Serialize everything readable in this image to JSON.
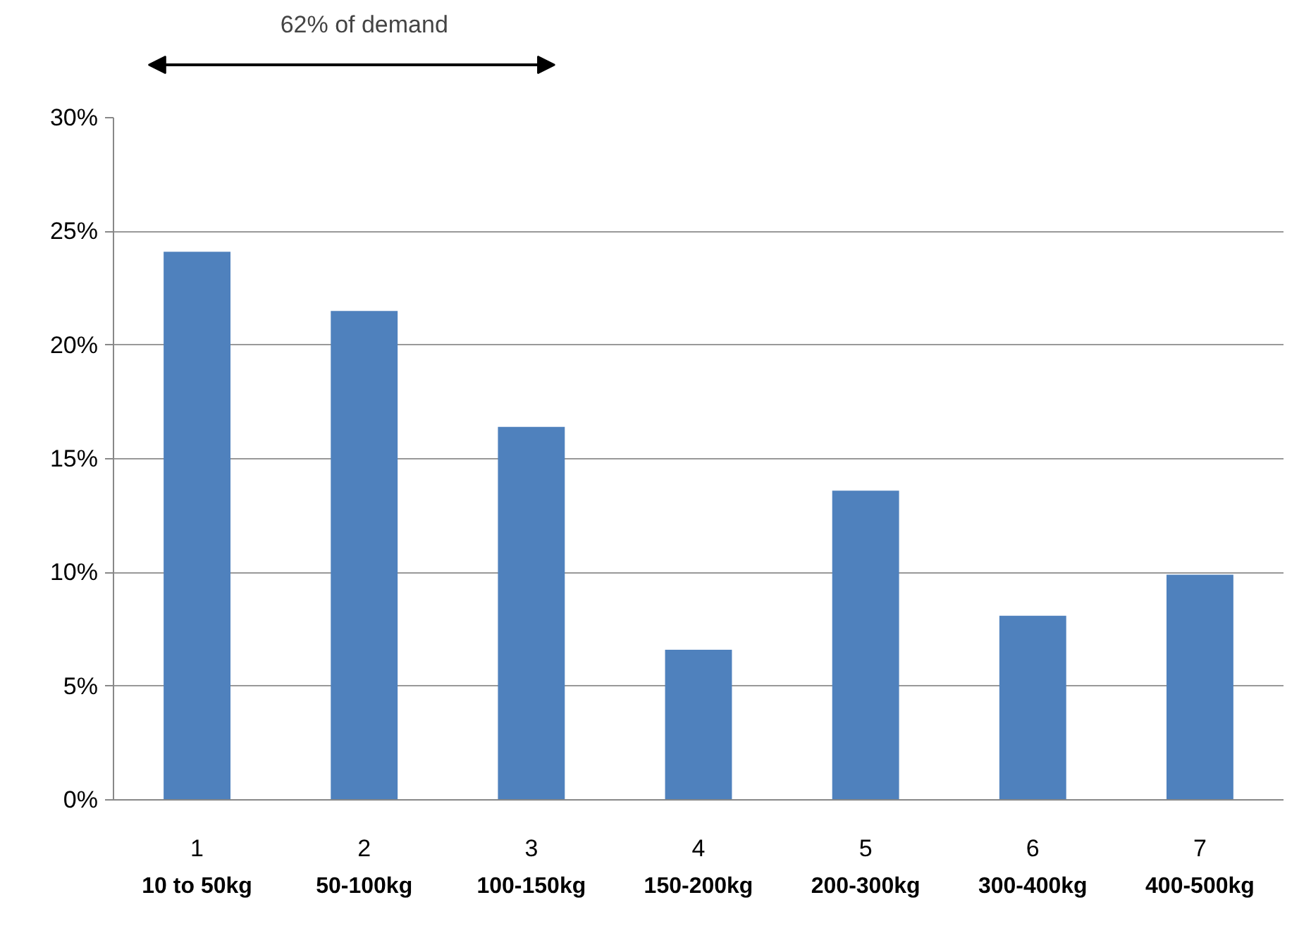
{
  "chart_data": {
    "type": "bar",
    "categories": [
      "1\n10 to 50kg",
      "2\n50-100kg",
      "3\n100-150kg",
      "4\n150-200kg",
      "5\n200-300kg",
      "6\n300-400kg",
      "7\n400-500kg"
    ],
    "values": [
      24.1,
      21.5,
      16.4,
      6.6,
      13.6,
      8.1,
      9.9
    ],
    "color": "#4f81bd",
    "ylim": [
      0,
      30
    ],
    "yticks": [
      {
        "value": 0,
        "label": "0%"
      },
      {
        "value": 5,
        "label": "5%"
      },
      {
        "value": 10,
        "label": "10%"
      },
      {
        "value": 15,
        "label": "15%"
      },
      {
        "value": 20,
        "label": "20%"
      },
      {
        "value": 25,
        "label": "25%"
      },
      {
        "value": 30,
        "label": "30%"
      }
    ],
    "grid": "y",
    "annotations": [
      "62% of demand"
    ]
  }
}
